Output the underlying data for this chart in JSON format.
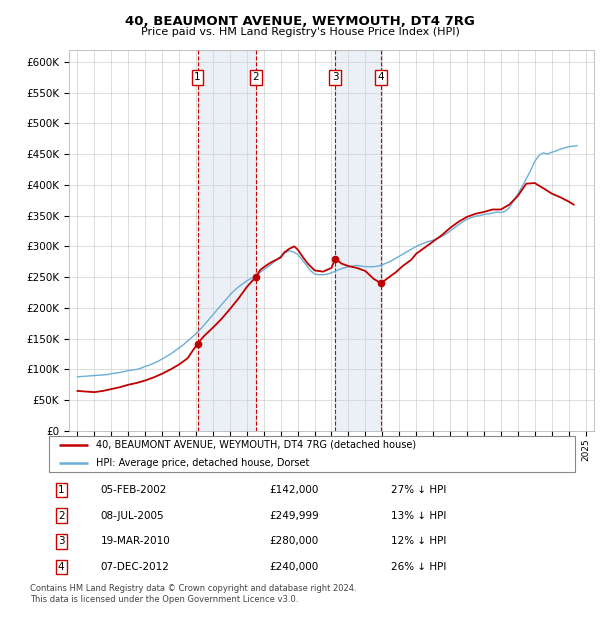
{
  "title": "40, BEAUMONT AVENUE, WEYMOUTH, DT4 7RG",
  "subtitle": "Price paid vs. HM Land Registry's House Price Index (HPI)",
  "footer1": "Contains HM Land Registry data © Crown copyright and database right 2024.",
  "footer2": "This data is licensed under the Open Government Licence v3.0.",
  "legend1": "40, BEAUMONT AVENUE, WEYMOUTH, DT4 7RG (detached house)",
  "legend2": "HPI: Average price, detached house, Dorset",
  "purchases": [
    {
      "label": "1",
      "date": "05-FEB-2002",
      "x": 2002.09,
      "price": 142000,
      "price_str": "£142,000",
      "pct": "27% ↓ HPI"
    },
    {
      "label": "2",
      "date": "08-JUL-2005",
      "x": 2005.52,
      "price": 249999,
      "price_str": "£249,999",
      "pct": "13% ↓ HPI"
    },
    {
      "label": "3",
      "date": "19-MAR-2010",
      "x": 2010.22,
      "price": 280000,
      "price_str": "£280,000",
      "pct": "12% ↓ HPI"
    },
    {
      "label": "4",
      "date": "07-DEC-2012",
      "x": 2012.93,
      "price": 240000,
      "price_str": "£240,000",
      "pct": "26% ↓ HPI"
    }
  ],
  "hpi_color": "#6baed6",
  "price_color": "#c00000",
  "dashed_color": "#cc0000",
  "shade_color": "#dce6f1",
  "ylim": [
    0,
    620000
  ],
  "yticks": [
    0,
    50000,
    100000,
    150000,
    200000,
    250000,
    300000,
    350000,
    400000,
    450000,
    500000,
    550000,
    600000
  ],
  "xlim": [
    1994.5,
    2025.5
  ],
  "hpi_data_x": [
    1995,
    1995.25,
    1995.5,
    1995.75,
    1996,
    1996.25,
    1996.5,
    1996.75,
    1997,
    1997.25,
    1997.5,
    1997.75,
    1998,
    1998.25,
    1998.5,
    1998.75,
    1999,
    1999.25,
    1999.5,
    1999.75,
    2000,
    2000.25,
    2000.5,
    2000.75,
    2001,
    2001.25,
    2001.5,
    2001.75,
    2002,
    2002.25,
    2002.5,
    2002.75,
    2003,
    2003.25,
    2003.5,
    2003.75,
    2004,
    2004.25,
    2004.5,
    2004.75,
    2005,
    2005.25,
    2005.5,
    2005.75,
    2006,
    2006.25,
    2006.5,
    2006.75,
    2007,
    2007.25,
    2007.5,
    2007.75,
    2008,
    2008.25,
    2008.5,
    2008.75,
    2009,
    2009.25,
    2009.5,
    2009.75,
    2010,
    2010.25,
    2010.5,
    2010.75,
    2011,
    2011.25,
    2011.5,
    2011.75,
    2012,
    2012.25,
    2012.5,
    2012.75,
    2013,
    2013.25,
    2013.5,
    2013.75,
    2014,
    2014.25,
    2014.5,
    2014.75,
    2015,
    2015.25,
    2015.5,
    2015.75,
    2016,
    2016.25,
    2016.5,
    2016.75,
    2017,
    2017.25,
    2017.5,
    2017.75,
    2018,
    2018.25,
    2018.5,
    2018.75,
    2019,
    2019.25,
    2019.5,
    2019.75,
    2020,
    2020.25,
    2020.5,
    2020.75,
    2021,
    2021.25,
    2021.5,
    2021.75,
    2022,
    2022.25,
    2022.5,
    2022.75,
    2023,
    2023.25,
    2023.5,
    2023.75,
    2024,
    2024.25,
    2024.5
  ],
  "hpi_data_y": [
    88000,
    88500,
    89000,
    89500,
    90000,
    90500,
    91000,
    91500,
    93000,
    94000,
    95000,
    96500,
    98000,
    99000,
    100000,
    102000,
    105000,
    107000,
    110000,
    113000,
    117000,
    121000,
    125000,
    130000,
    135000,
    140000,
    146000,
    152000,
    158000,
    165000,
    173000,
    181000,
    189000,
    197000,
    205000,
    213000,
    221000,
    228000,
    234000,
    239000,
    244000,
    248000,
    252000,
    257000,
    262000,
    267000,
    272000,
    278000,
    284000,
    289000,
    293000,
    291000,
    287000,
    279000,
    270000,
    261000,
    255000,
    254000,
    254000,
    255000,
    257000,
    260000,
    263000,
    265000,
    267000,
    268000,
    269000,
    268000,
    267000,
    267000,
    267000,
    268000,
    270000,
    273000,
    276000,
    280000,
    284000,
    288000,
    292000,
    296000,
    300000,
    303000,
    306000,
    308000,
    310000,
    313000,
    316000,
    320000,
    325000,
    330000,
    335000,
    340000,
    344000,
    347000,
    349000,
    350000,
    352000,
    353000,
    354000,
    356000,
    355000,
    357000,
    363000,
    374000,
    385000,
    397000,
    410000,
    423000,
    438000,
    448000,
    452000,
    450000,
    453000,
    455000,
    458000,
    460000,
    462000,
    463000,
    464000
  ],
  "price_data_x": [
    1995.0,
    1995.5,
    1996.0,
    1996.5,
    1997.0,
    1997.5,
    1998.0,
    1998.5,
    1999.0,
    1999.5,
    2000.0,
    2000.5,
    2001.0,
    2001.5,
    2002.09,
    2002.5,
    2003.0,
    2003.5,
    2004.0,
    2004.5,
    2005.0,
    2005.52,
    2005.8,
    2006.2,
    2006.5,
    2007.0,
    2007.2,
    2007.5,
    2007.8,
    2008.0,
    2008.3,
    2008.6,
    2009.0,
    2009.5,
    2010.0,
    2010.22,
    2010.6,
    2011.0,
    2011.5,
    2012.0,
    2012.5,
    2012.93,
    2013.3,
    2013.8,
    2014.2,
    2014.7,
    2015.0,
    2015.5,
    2016.0,
    2016.5,
    2017.0,
    2017.5,
    2018.0,
    2018.5,
    2019.0,
    2019.5,
    2020.0,
    2020.5,
    2021.0,
    2021.5,
    2022.0,
    2022.3,
    2022.6,
    2023.0,
    2023.5,
    2024.0,
    2024.3
  ],
  "price_data_y": [
    65000,
    64000,
    63000,
    65000,
    68000,
    71000,
    75000,
    78000,
    82000,
    87000,
    93000,
    100000,
    108000,
    118000,
    142000,
    155000,
    168000,
    182000,
    198000,
    215000,
    234000,
    249999,
    262000,
    270000,
    275000,
    282000,
    290000,
    296000,
    300000,
    295000,
    283000,
    272000,
    261000,
    259000,
    265000,
    280000,
    272000,
    268000,
    265000,
    260000,
    247000,
    240000,
    248000,
    258000,
    268000,
    278000,
    288000,
    298000,
    308000,
    318000,
    330000,
    340000,
    348000,
    353000,
    356000,
    360000,
    360000,
    368000,
    382000,
    402000,
    403000,
    398000,
    393000,
    386000,
    380000,
    373000,
    368000
  ]
}
